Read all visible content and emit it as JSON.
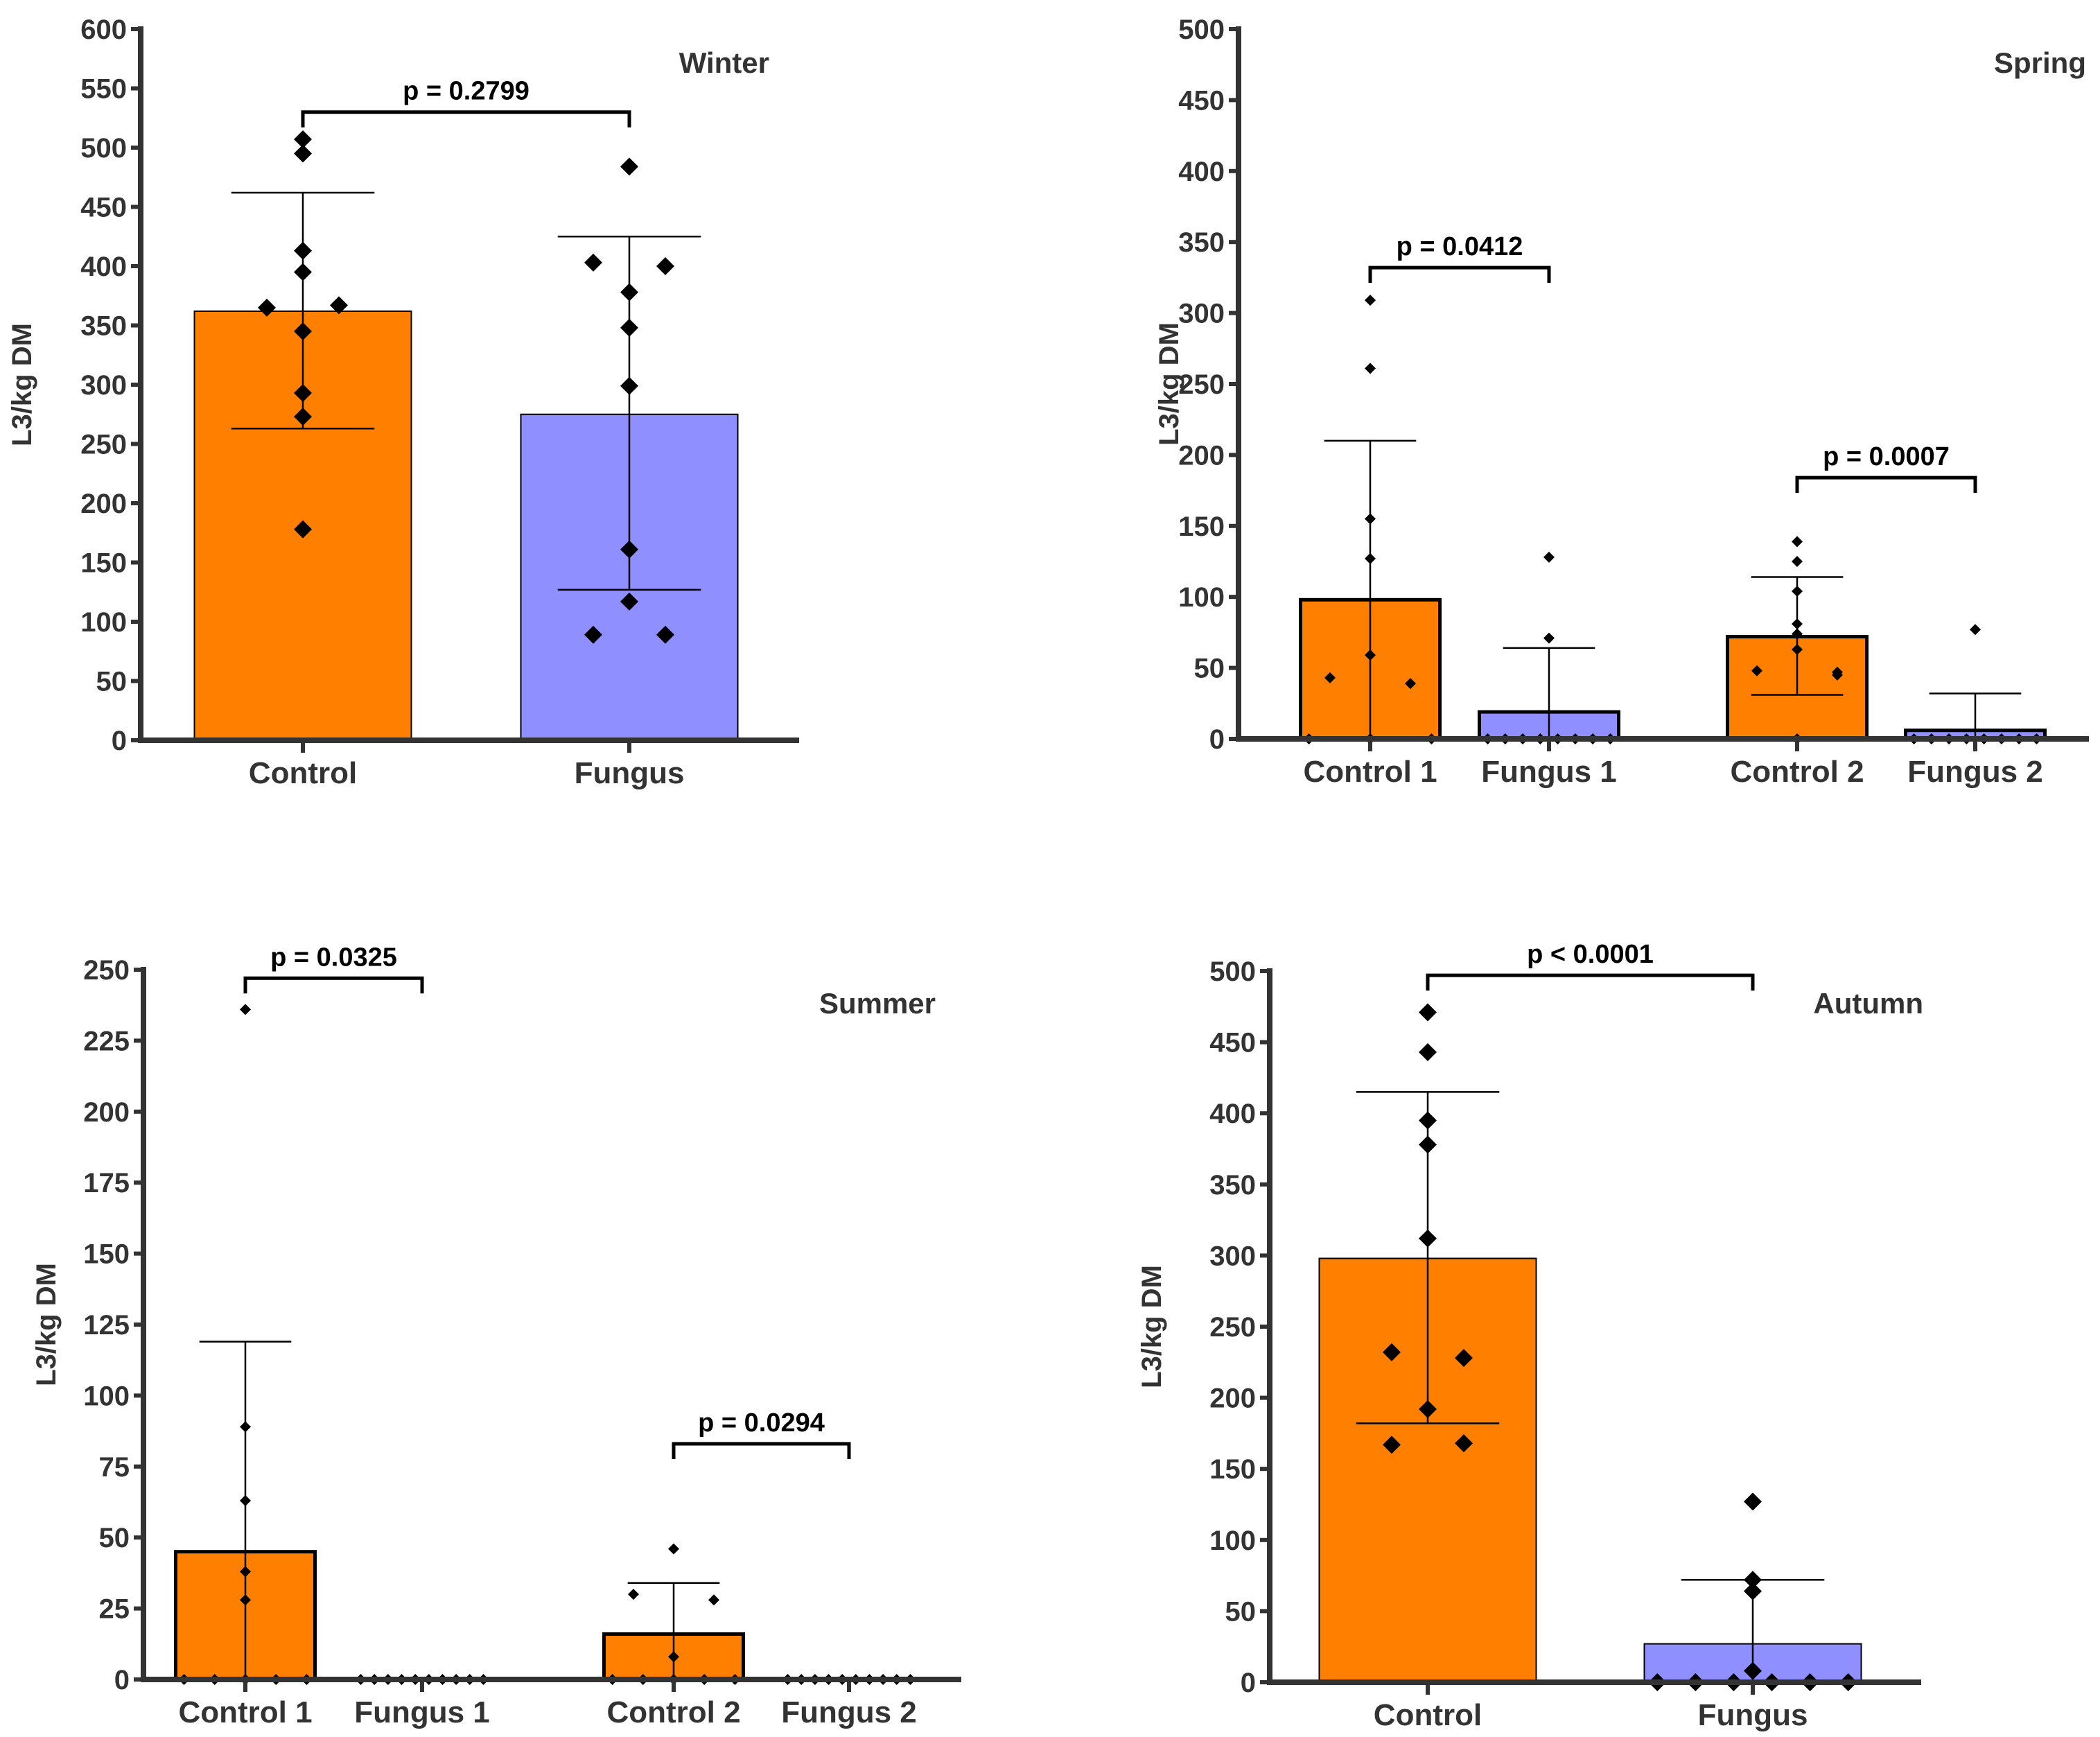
{
  "chart_data": [
    {
      "type": "bar",
      "title": "Winter",
      "ylabel": "L3/kg DM",
      "ylim": [
        0,
        600
      ],
      "ytick_step": 50,
      "categories": [
        "Control",
        "Fungus"
      ],
      "colors": [
        "#ff8000",
        "#8f8fff"
      ],
      "means": [
        362,
        275
      ],
      "err_low": [
        263,
        127
      ],
      "err_high": [
        462,
        425
      ],
      "points": [
        [
          507,
          495,
          413,
          395,
          365,
          367,
          345,
          293,
          273,
          178
        ],
        [
          484,
          403,
          400,
          378,
          348,
          299,
          161,
          117,
          89,
          89
        ]
      ],
      "comparisons": [
        {
          "a": 0,
          "b": 1,
          "label": "p = 0.2799",
          "level": 530
        }
      ]
    },
    {
      "type": "bar",
      "title": "Spring",
      "ylabel": "L3/kg DM",
      "ylim": [
        0,
        500
      ],
      "ytick_step": 50,
      "categories": [
        "Control 1",
        "Fungus 1",
        "Control 2",
        "Fungus 2"
      ],
      "colors": [
        "#ff8000",
        "#8f8fff",
        "#ff8000",
        "#8f8fff"
      ],
      "means": [
        98,
        19,
        72,
        6
      ],
      "err_low": [
        0,
        0,
        31,
        0
      ],
      "err_high": [
        210,
        64,
        114,
        32
      ],
      "points": [
        [
          309,
          261,
          155,
          127,
          59,
          43,
          39,
          0,
          0,
          0
        ],
        [
          128,
          71,
          0,
          0,
          0,
          0,
          0,
          0,
          0,
          0
        ],
        [
          139,
          125,
          104,
          81,
          74,
          63,
          48,
          45,
          47,
          0
        ],
        [
          77,
          0,
          0,
          0,
          0,
          0,
          0,
          0,
          0
        ]
      ],
      "comparisons": [
        {
          "a": 0,
          "b": 1,
          "label": "p = 0.0412",
          "level": 332
        },
        {
          "a": 2,
          "b": 3,
          "label": "p = 0.0007",
          "level": 184
        }
      ]
    },
    {
      "type": "bar",
      "title": "Summer",
      "ylabel": "L3/kg DM",
      "ylim": [
        0,
        250
      ],
      "ytick_step": 25,
      "categories": [
        "Control 1",
        "Fungus 1",
        "Control 2",
        "Fungus 2"
      ],
      "colors": [
        "#ff8000",
        "#8f8fff",
        "#ff8000",
        "#8f8fff"
      ],
      "means": [
        45,
        0,
        16,
        0
      ],
      "err_low": [
        0,
        0,
        0,
        0
      ],
      "err_high": [
        119,
        0,
        34,
        0
      ],
      "points": [
        [
          236,
          89,
          63,
          38,
          28,
          0,
          0,
          0,
          0,
          0
        ],
        [
          0,
          0,
          0,
          0,
          0,
          0,
          0,
          0,
          0,
          0
        ],
        [
          46,
          30,
          28,
          8,
          0,
          0,
          0,
          0,
          0
        ],
        [
          0,
          0,
          0,
          0,
          0,
          0,
          0,
          0,
          0,
          0
        ]
      ],
      "comparisons": [
        {
          "a": 0,
          "b": 1,
          "label": "p = 0.0325",
          "level": 247
        },
        {
          "a": 2,
          "b": 3,
          "label": "p = 0.0294",
          "level": 83
        }
      ]
    },
    {
      "type": "bar",
      "title": "Autumn",
      "ylabel": "L3/kg DM",
      "ylim": [
        0,
        500
      ],
      "ytick_step": 50,
      "categories": [
        "Control",
        "Fungus"
      ],
      "colors": [
        "#ff8000",
        "#8f8fff"
      ],
      "means": [
        298,
        27
      ],
      "err_low": [
        182,
        0
      ],
      "err_high": [
        415,
        72
      ],
      "points": [
        [
          471,
          443,
          395,
          378,
          312,
          232,
          228,
          192,
          167,
          168
        ],
        [
          127,
          72,
          64,
          8,
          0,
          0,
          0,
          0,
          0,
          0
        ]
      ],
      "comparisons": [
        {
          "a": 0,
          "b": 1,
          "label": "p < 0.0001",
          "level": 497
        }
      ]
    }
  ]
}
